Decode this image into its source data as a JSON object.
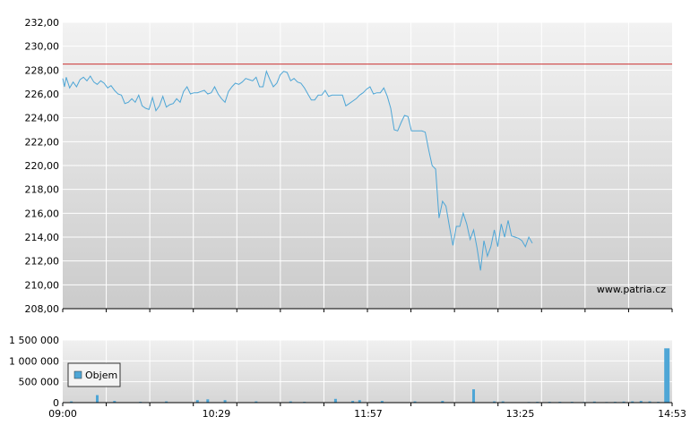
{
  "chart_data": [
    {
      "type": "line",
      "title": "",
      "xlabel": "",
      "ylabel": "",
      "ylim": [
        208,
        232
      ],
      "y_ticks": [
        "232,00",
        "230,00",
        "228,00",
        "226,00",
        "224,00",
        "222,00",
        "220,00",
        "218,00",
        "216,00",
        "214,00",
        "212,00",
        "210,00",
        "208,00"
      ],
      "y_tick_values": [
        232,
        230,
        228,
        226,
        224,
        222,
        220,
        218,
        216,
        214,
        212,
        210,
        208
      ],
      "x_range_minutes": [
        540,
        893
      ],
      "reference_line": {
        "value": 228.5,
        "color": "#cc3333"
      },
      "series": [
        {
          "color": "#4ea6d6",
          "points": [
            [
              540,
              227.3
            ],
            [
              541,
              226.6
            ],
            [
              542,
              227.4
            ],
            [
              544,
              226.5
            ],
            [
              546,
              227.0
            ],
            [
              548,
              226.6
            ],
            [
              550,
              227.2
            ],
            [
              552,
              227.4
            ],
            [
              554,
              227.1
            ],
            [
              556,
              227.5
            ],
            [
              558,
              227.0
            ],
            [
              560,
              226.8
            ],
            [
              562,
              227.1
            ],
            [
              564,
              226.9
            ],
            [
              566,
              226.5
            ],
            [
              568,
              226.7
            ],
            [
              570,
              226.3
            ],
            [
              572,
              226.0
            ],
            [
              574,
              225.9
            ],
            [
              576,
              225.2
            ],
            [
              578,
              225.3
            ],
            [
              580,
              225.6
            ],
            [
              582,
              225.3
            ],
            [
              584,
              225.9
            ],
            [
              586,
              225.0
            ],
            [
              588,
              224.8
            ],
            [
              590,
              224.7
            ],
            [
              592,
              225.7
            ],
            [
              594,
              224.6
            ],
            [
              596,
              225.0
            ],
            [
              598,
              225.8
            ],
            [
              600,
              224.9
            ],
            [
              602,
              225.1
            ],
            [
              604,
              225.2
            ],
            [
              606,
              225.6
            ],
            [
              608,
              225.3
            ],
            [
              610,
              226.2
            ],
            [
              612,
              226.6
            ],
            [
              614,
              226.0
            ],
            [
              616,
              226.1
            ],
            [
              618,
              226.1
            ],
            [
              620,
              226.2
            ],
            [
              622,
              226.3
            ],
            [
              624,
              226.0
            ],
            [
              626,
              226.1
            ],
            [
              628,
              226.6
            ],
            [
              630,
              226.0
            ],
            [
              632,
              225.6
            ],
            [
              634,
              225.3
            ],
            [
              636,
              226.2
            ],
            [
              638,
              226.6
            ],
            [
              640,
              226.9
            ],
            [
              642,
              226.8
            ],
            [
              644,
              227.0
            ],
            [
              646,
              227.3
            ],
            [
              648,
              227.2
            ],
            [
              650,
              227.1
            ],
            [
              652,
              227.4
            ],
            [
              654,
              226.6
            ],
            [
              656,
              226.6
            ],
            [
              658,
              227.9
            ],
            [
              660,
              227.2
            ],
            [
              662,
              226.6
            ],
            [
              664,
              226.9
            ],
            [
              666,
              227.6
            ],
            [
              668,
              227.9
            ],
            [
              670,
              227.8
            ],
            [
              672,
              227.1
            ],
            [
              674,
              227.3
            ],
            [
              676,
              227.0
            ],
            [
              678,
              226.9
            ],
            [
              680,
              226.5
            ],
            [
              682,
              226.0
            ],
            [
              684,
              225.5
            ],
            [
              686,
              225.5
            ],
            [
              688,
              225.9
            ],
            [
              690,
              225.9
            ],
            [
              692,
              226.3
            ],
            [
              694,
              225.8
            ],
            [
              696,
              225.9
            ],
            [
              698,
              225.9
            ],
            [
              700,
              225.9
            ],
            [
              702,
              225.9
            ],
            [
              704,
              225.0
            ],
            [
              706,
              225.2
            ],
            [
              708,
              225.4
            ],
            [
              710,
              225.6
            ],
            [
              712,
              225.9
            ],
            [
              714,
              226.1
            ],
            [
              716,
              226.4
            ],
            [
              718,
              226.6
            ],
            [
              720,
              226.0
            ],
            [
              722,
              226.1
            ],
            [
              724,
              226.1
            ],
            [
              726,
              226.5
            ],
            [
              728,
              225.8
            ],
            [
              730,
              224.8
            ],
            [
              732,
              223.0
            ],
            [
              734,
              222.9
            ],
            [
              736,
              223.6
            ],
            [
              738,
              224.2
            ],
            [
              740,
              224.1
            ],
            [
              742,
              222.9
            ],
            [
              744,
              222.9
            ],
            [
              746,
              222.9
            ],
            [
              748,
              222.9
            ],
            [
              750,
              222.8
            ],
            [
              752,
              221.3
            ],
            [
              754,
              220.0
            ],
            [
              756,
              219.7
            ],
            [
              758,
              215.6
            ],
            [
              760,
              217.0
            ],
            [
              762,
              216.6
            ],
            [
              764,
              214.9
            ],
            [
              766,
              213.3
            ],
            [
              768,
              214.9
            ],
            [
              770,
              214.9
            ],
            [
              772,
              216.0
            ],
            [
              774,
              215.1
            ],
            [
              776,
              213.8
            ],
            [
              778,
              214.6
            ],
            [
              780,
              213.1
            ],
            [
              782,
              211.2
            ],
            [
              784,
              213.7
            ],
            [
              786,
              212.4
            ],
            [
              788,
              213.2
            ],
            [
              790,
              214.6
            ],
            [
              792,
              213.2
            ],
            [
              794,
              215.1
            ],
            [
              796,
              214.0
            ],
            [
              798,
              215.4
            ],
            [
              800,
              214.1
            ],
            [
              802,
              214.0
            ],
            [
              804,
              213.9
            ],
            [
              806,
              213.7
            ],
            [
              808,
              213.2
            ],
            [
              810,
              214.0
            ],
            [
              812,
              213.5
            ]
          ]
        }
      ]
    },
    {
      "type": "bar",
      "title": "",
      "ylim": [
        0,
        1500000
      ],
      "y_ticks": [
        "1 500 000",
        "1 000 000",
        "500 000",
        "0"
      ],
      "y_tick_values": [
        1500000,
        1000000,
        500000,
        0
      ],
      "x_ticks": [
        "09:00",
        "10:29",
        "11:57",
        "13:25",
        "14:53"
      ],
      "x_tick_values": [
        540,
        629,
        717,
        805,
        893
      ],
      "legend": {
        "label": "Objem",
        "placement": "left"
      },
      "series": [
        {
          "name": "Objem",
          "color": "#4ea6d6",
          "bars": [
            [
              545,
              30000
            ],
            [
              560,
              180000
            ],
            [
              570,
              40000
            ],
            [
              585,
              20000
            ],
            [
              600,
              30000
            ],
            [
              618,
              60000
            ],
            [
              624,
              80000
            ],
            [
              634,
              60000
            ],
            [
              652,
              30000
            ],
            [
              672,
              30000
            ],
            [
              680,
              20000
            ],
            [
              698,
              90000
            ],
            [
              708,
              40000
            ],
            [
              712,
              60000
            ],
            [
              725,
              40000
            ],
            [
              744,
              30000
            ],
            [
              760,
              40000
            ],
            [
              778,
              320000
            ],
            [
              790,
              30000
            ],
            [
              795,
              30000
            ],
            [
              810,
              15000
            ],
            [
              815,
              20000
            ],
            [
              822,
              20000
            ],
            [
              828,
              20000
            ],
            [
              835,
              20000
            ],
            [
              842,
              15000
            ],
            [
              848,
              25000
            ],
            [
              855,
              15000
            ],
            [
              860,
              20000
            ],
            [
              865,
              25000
            ],
            [
              870,
              30000
            ],
            [
              875,
              40000
            ],
            [
              880,
              30000
            ],
            [
              885,
              20000
            ],
            [
              890,
              1300000
            ]
          ]
        }
      ]
    }
  ],
  "watermark": "www.patria.cz"
}
